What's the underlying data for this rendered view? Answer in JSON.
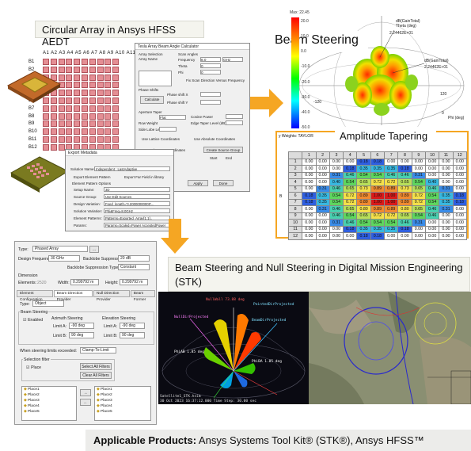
{
  "captions": {
    "circular_array": "Circular Array in Ansys HFSS AEDT",
    "beam_steering": "Beam Steering",
    "amplitude_tapering": "Amplitude Tapering",
    "stk": "Beam Steering and Null Steering in Digital Mission Engineering (STK)"
  },
  "footer": {
    "bold": "Applicable Products:",
    "text": " Ansys Systems Tool Kit® (STK®), Ansys HFSS™"
  },
  "array": {
    "columns": "A1 A2 A3 A4 A5 A6 A7 A8 A9 A10 A11 A12",
    "rows": [
      "B1",
      "B2",
      "B3",
      "B4",
      "B5",
      "B6",
      "B7",
      "B8",
      "B9",
      "B10",
      "B11",
      "B12"
    ]
  },
  "hfss_dialog": {
    "title": "Tesla Array Beam Angle Calculator",
    "array_selection": "Array Selection",
    "array_name": "Array Name",
    "scan_angles": "Scan Angles",
    "frequency": "Frequency",
    "frequency_value": "8.0",
    "frequency_unit": "GHz",
    "theta": "Theta",
    "theta_value": "0",
    "phi": "Phi",
    "phi_value": "0",
    "unit_deg": "deg",
    "fix_scan": "Fix Scan Direction Versus Frequency",
    "phase_shifts": "Phase Shifts",
    "phase_x": "Phase shift X",
    "phase_y": "Phase shift Y",
    "calculate": "Calculate",
    "aperture_taper": "Aperture Taper",
    "taper_type": "Flat",
    "cosine_power": "Cosine Power",
    "edge_taper": "Edge Taper Level (dB)",
    "row_weight": "Row Weight",
    "side_lobe": "Side Lobe Level",
    "use_lattice": "Use Lattice Coordinates",
    "use_absolute": "Use Absolute Coordinates",
    "create_source": "Create Source Group",
    "use_subarray": "Use Sub-Array Coordinates",
    "start": "Start",
    "end": "End",
    "done": "Done",
    "apply": "Apply"
  },
  "export_dialog": {
    "title": "Export Metadata",
    "solution_name": "Solution Name:",
    "solution_value": "Independent : LastAdaptive",
    "export_element": "Export Element Pattern",
    "export_far_field": "Export Far Field in library",
    "element_pattern_options": "Element Pattern Options",
    "setup_name": "Setup Name:",
    "setup_value": "3D",
    "source_group": "Source Group:",
    "source_value": "Use Edit Sources",
    "design_variation": "Design Variation:",
    "design_value": "Feed_length='0.20000000000'...",
    "solution_variation": "Solution Variation:",
    "solution_variation_value": "Phi&Freq=8.0GHz",
    "element_patterns": "Element Patterns:",
    "element_value": "Patterns=Exported_Array[1,1]..",
    "params": "Params:",
    "params_value": "Params=Scaled=Power AcceptedPower"
  },
  "beam_pattern": {
    "colorbar_max": "Max: 22.45",
    "colorbar_labels": [
      "20.0",
      "10.0",
      "0.0",
      "-10.0",
      "-20.0",
      "-30.0",
      "-40.0",
      "-50.0"
    ],
    "label_top": "dB(GainTotal)",
    "label_top_2": "Theta (deg)",
    "label_value_1": "2.24462E+01",
    "label_right": "dB(GainTotal)",
    "label_value_2": "2.24462E+01",
    "tick_120": "120",
    "tick_minus_120": "-120",
    "tick_0": "0",
    "phi_label": "Phi (deg)"
  },
  "amplitude_table": {
    "header": "y Weights: TAYLOR",
    "row_axis": "B",
    "columns": [
      "1",
      "2",
      "3",
      "4",
      "5",
      "6",
      "7",
      "8",
      "9",
      "10",
      "11",
      "12"
    ],
    "rows": [
      [
        "0.00",
        "0.00",
        "0.00",
        "0.00",
        "0.18",
        "0.18",
        "0.00",
        "0.00",
        "0.00",
        "0.00",
        "0.00",
        "0.00"
      ],
      [
        "0.00",
        "0.00",
        "0.00",
        "0.18",
        "0.35",
        "0.35",
        "0.35",
        "0.18",
        "0.00",
        "0.00",
        "0.00",
        "0.00"
      ],
      [
        "0.00",
        "0.00",
        "0.31",
        "0.46",
        "0.54",
        "0.54",
        "0.46",
        "0.46",
        "0.31",
        "0.00",
        "0.00",
        "0.00"
      ],
      [
        "0.00",
        "0.00",
        "0.40",
        "0.54",
        "0.65",
        "0.72",
        "0.72",
        "0.65",
        "0.54",
        "0.40",
        "0.00",
        "0.00"
      ],
      [
        "0.00",
        "0.31",
        "0.46",
        "0.65",
        "0.73",
        "0.89",
        "0.89",
        "0.73",
        "0.65",
        "0.46",
        "0.31",
        "0.00"
      ],
      [
        "0.18",
        "0.35",
        "0.54",
        "0.72",
        "0.89",
        "1.00",
        "1.00",
        "0.89",
        "0.72",
        "0.54",
        "0.35",
        "0.18"
      ],
      [
        "0.18",
        "0.35",
        "0.54",
        "0.72",
        "0.89",
        "1.00",
        "1.00",
        "0.89",
        "0.72",
        "0.54",
        "0.35",
        "0.18"
      ],
      [
        "0.00",
        "0.31",
        "0.46",
        "0.65",
        "0.80",
        "0.89",
        "0.89",
        "0.80",
        "0.65",
        "0.46",
        "0.31",
        "0.00"
      ],
      [
        "0.00",
        "0.00",
        "0.46",
        "0.54",
        "0.65",
        "0.72",
        "0.72",
        "0.65",
        "0.54",
        "0.46",
        "0.00",
        "0.00"
      ],
      [
        "0.00",
        "0.00",
        "0.31",
        "0.46",
        "0.54",
        "0.54",
        "0.54",
        "0.46",
        "0.31",
        "0.00",
        "0.00",
        "0.00"
      ],
      [
        "0.00",
        "0.00",
        "0.00",
        "0.18",
        "0.35",
        "0.35",
        "0.35",
        "0.18",
        "0.00",
        "0.00",
        "0.00",
        "0.00"
      ],
      [
        "0.00",
        "0.00",
        "0.00",
        "0.00",
        "0.18",
        "0.18",
        "0.00",
        "0.00",
        "0.00",
        "0.00",
        "0.00",
        "0.00"
      ]
    ]
  },
  "stk": {
    "type_label": "Type:",
    "type_value": "Phased Array",
    "design_frequency": "Design Frequency:",
    "design_frequency_value": "30 GHz",
    "backlobe_suppression": "Backlobe Suppression:",
    "backlobe_value": "20 dB",
    "backlobe_type": "Backlobe Suppression Type:",
    "backlobe_type_value": "Constant",
    "dimension": "Dimension",
    "elements": "Elements:",
    "elements_value": "2520",
    "width": "Width:",
    "width_value": "0.299792 m",
    "height": "Height:",
    "height_value": "0.299792 m",
    "tabs": [
      "Element Configuration",
      "Beam Direction Provider",
      "Null Direction Provider",
      "Beam Former"
    ],
    "active_tab": 1,
    "type2_label": "Type:",
    "type2_value": "Object",
    "beam_steering": "Beam Steering",
    "enabled": "Enabled",
    "azimuth_steering": "Azimuth Steering",
    "elevation_steering": "Elevation Steering",
    "limit_a": "Limit A:",
    "limit_b": "Limit B:",
    "az_a": "-90 deg",
    "az_b": "90 deg",
    "el_a": "-90 deg",
    "el_b": "90 deg",
    "when_exceeded": "When steering limits exceeded:",
    "when_exceeded_value": "Clamp-To-Limit",
    "selection_filter": "Selection filter",
    "place": "Place",
    "select_all": "Select All Filters",
    "clear_all": "Clear All Filters",
    "left_list": [
      "Place1",
      "Place2",
      "Place3",
      "Place4",
      "Place5"
    ],
    "right_list": [
      "Place1",
      "Place2",
      "Place3",
      "Place4",
      "Place5"
    ]
  },
  "scene": {
    "null_label": "NullDirProjected",
    "beam_label": "BeamDirProjected",
    "null_top": "NullWall  73.88 deg",
    "point_label": "PointedDirProjected",
    "phi_label": "PhiAB  1.85 deg",
    "phi_label_2": "PhiBA  1.85 deg",
    "status": "Satellite1_STK.hsim",
    "time": "30 Oct 2023 16:37:12.000   Time Step: 30.00 sec"
  },
  "colors": {
    "accent_orange": "#f5a623",
    "patch_pink": "#e48e94"
  }
}
